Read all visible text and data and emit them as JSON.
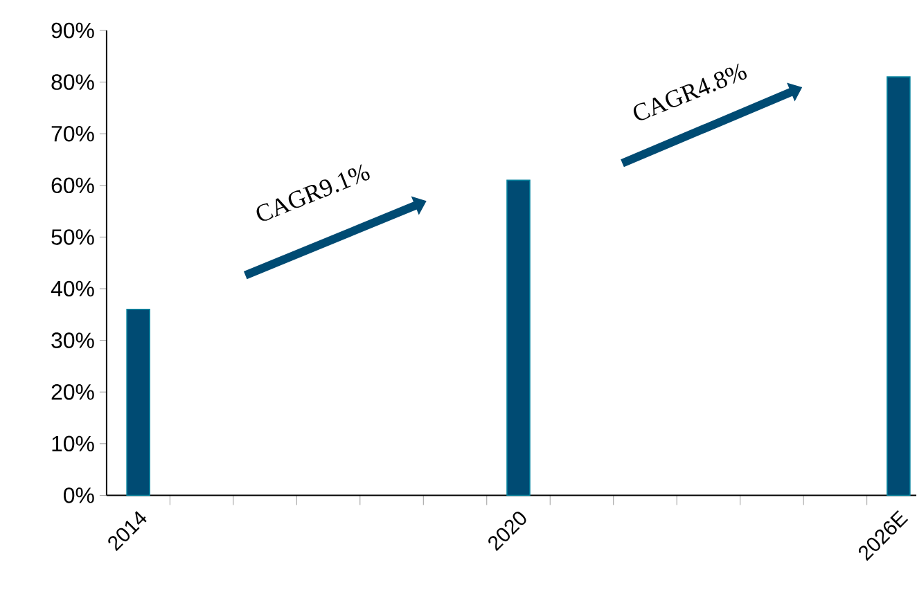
{
  "chart_data": {
    "type": "bar",
    "categories": [
      "2014",
      null,
      null,
      null,
      null,
      null,
      "2020",
      null,
      null,
      null,
      null,
      null,
      "2026E"
    ],
    "values": [
      36,
      null,
      null,
      null,
      null,
      null,
      61,
      null,
      null,
      null,
      null,
      null,
      81
    ],
    "color": "#004b73",
    "ylim": [
      0,
      90
    ],
    "yticks": [
      {
        "value": 0,
        "label": "0%"
      },
      {
        "value": 10,
        "label": "10%"
      },
      {
        "value": 20,
        "label": "20%"
      },
      {
        "value": 30,
        "label": "30%"
      },
      {
        "value": 40,
        "label": "40%"
      },
      {
        "value": 50,
        "label": "50%"
      },
      {
        "value": 60,
        "label": "60%"
      },
      {
        "value": 70,
        "label": "70%"
      },
      {
        "value": 80,
        "label": "80%"
      },
      {
        "value": 90,
        "label": "90%"
      }
    ],
    "annotations": [
      "CAGR9.1%",
      "CAGR4.8%"
    ]
  }
}
